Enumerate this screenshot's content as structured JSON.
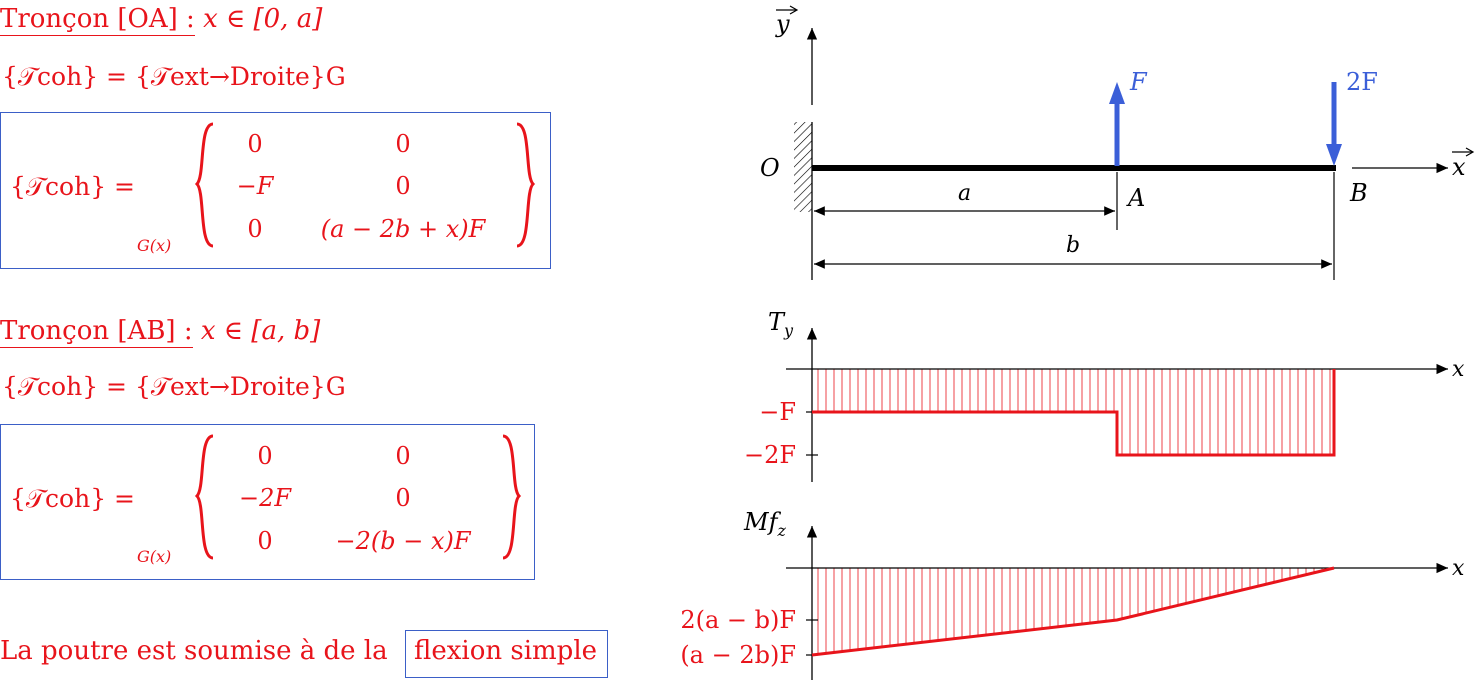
{
  "left": {
    "section1": {
      "title": "Tronçon [OA] :",
      "domain": "x ∈ [0, a]",
      "equality": "{𝒯coh} = {𝒯ext→Droite}G",
      "lhs": "{𝒯coh} =",
      "point": "G(x)",
      "matrix": [
        [
          "0",
          "0"
        ],
        [
          "−F",
          "0"
        ],
        [
          "0",
          "(a − 2b + x)F"
        ]
      ]
    },
    "section2": {
      "title": "Tronçon [AB] :",
      "domain": "x ∈ [a, b]",
      "equality": "{𝒯coh} = {𝒯ext→Droite}G",
      "lhs": "{𝒯coh} =",
      "point": "G(x)",
      "matrix": [
        [
          "0",
          "0"
        ],
        [
          "−2F",
          "0"
        ],
        [
          "0",
          "−2(b − x)F"
        ]
      ]
    },
    "conclusion": {
      "text": "La poutre est soumise à de la",
      "boxed": "flexion simple"
    }
  },
  "beam": {
    "y_axis": "y",
    "x_axis": "x",
    "origin": "O",
    "point_a": "A",
    "point_b": "B",
    "force_a": "F",
    "force_b": "2F",
    "dim_a": "a",
    "dim_b": "b",
    "force_color": "#3b5fd8"
  },
  "shear": {
    "axis_label": "Ty",
    "x_label": "x",
    "tick1": "−F",
    "tick2": "−2F"
  },
  "moment": {
    "axis_label": "Mfz",
    "x_label": "x",
    "tick1": "2(a − b)F",
    "tick2": "(a − 2b)F"
  },
  "colors": {
    "red": "#e8141b",
    "blue_box": "#3b5fc7",
    "force": "#3b5fd8"
  }
}
